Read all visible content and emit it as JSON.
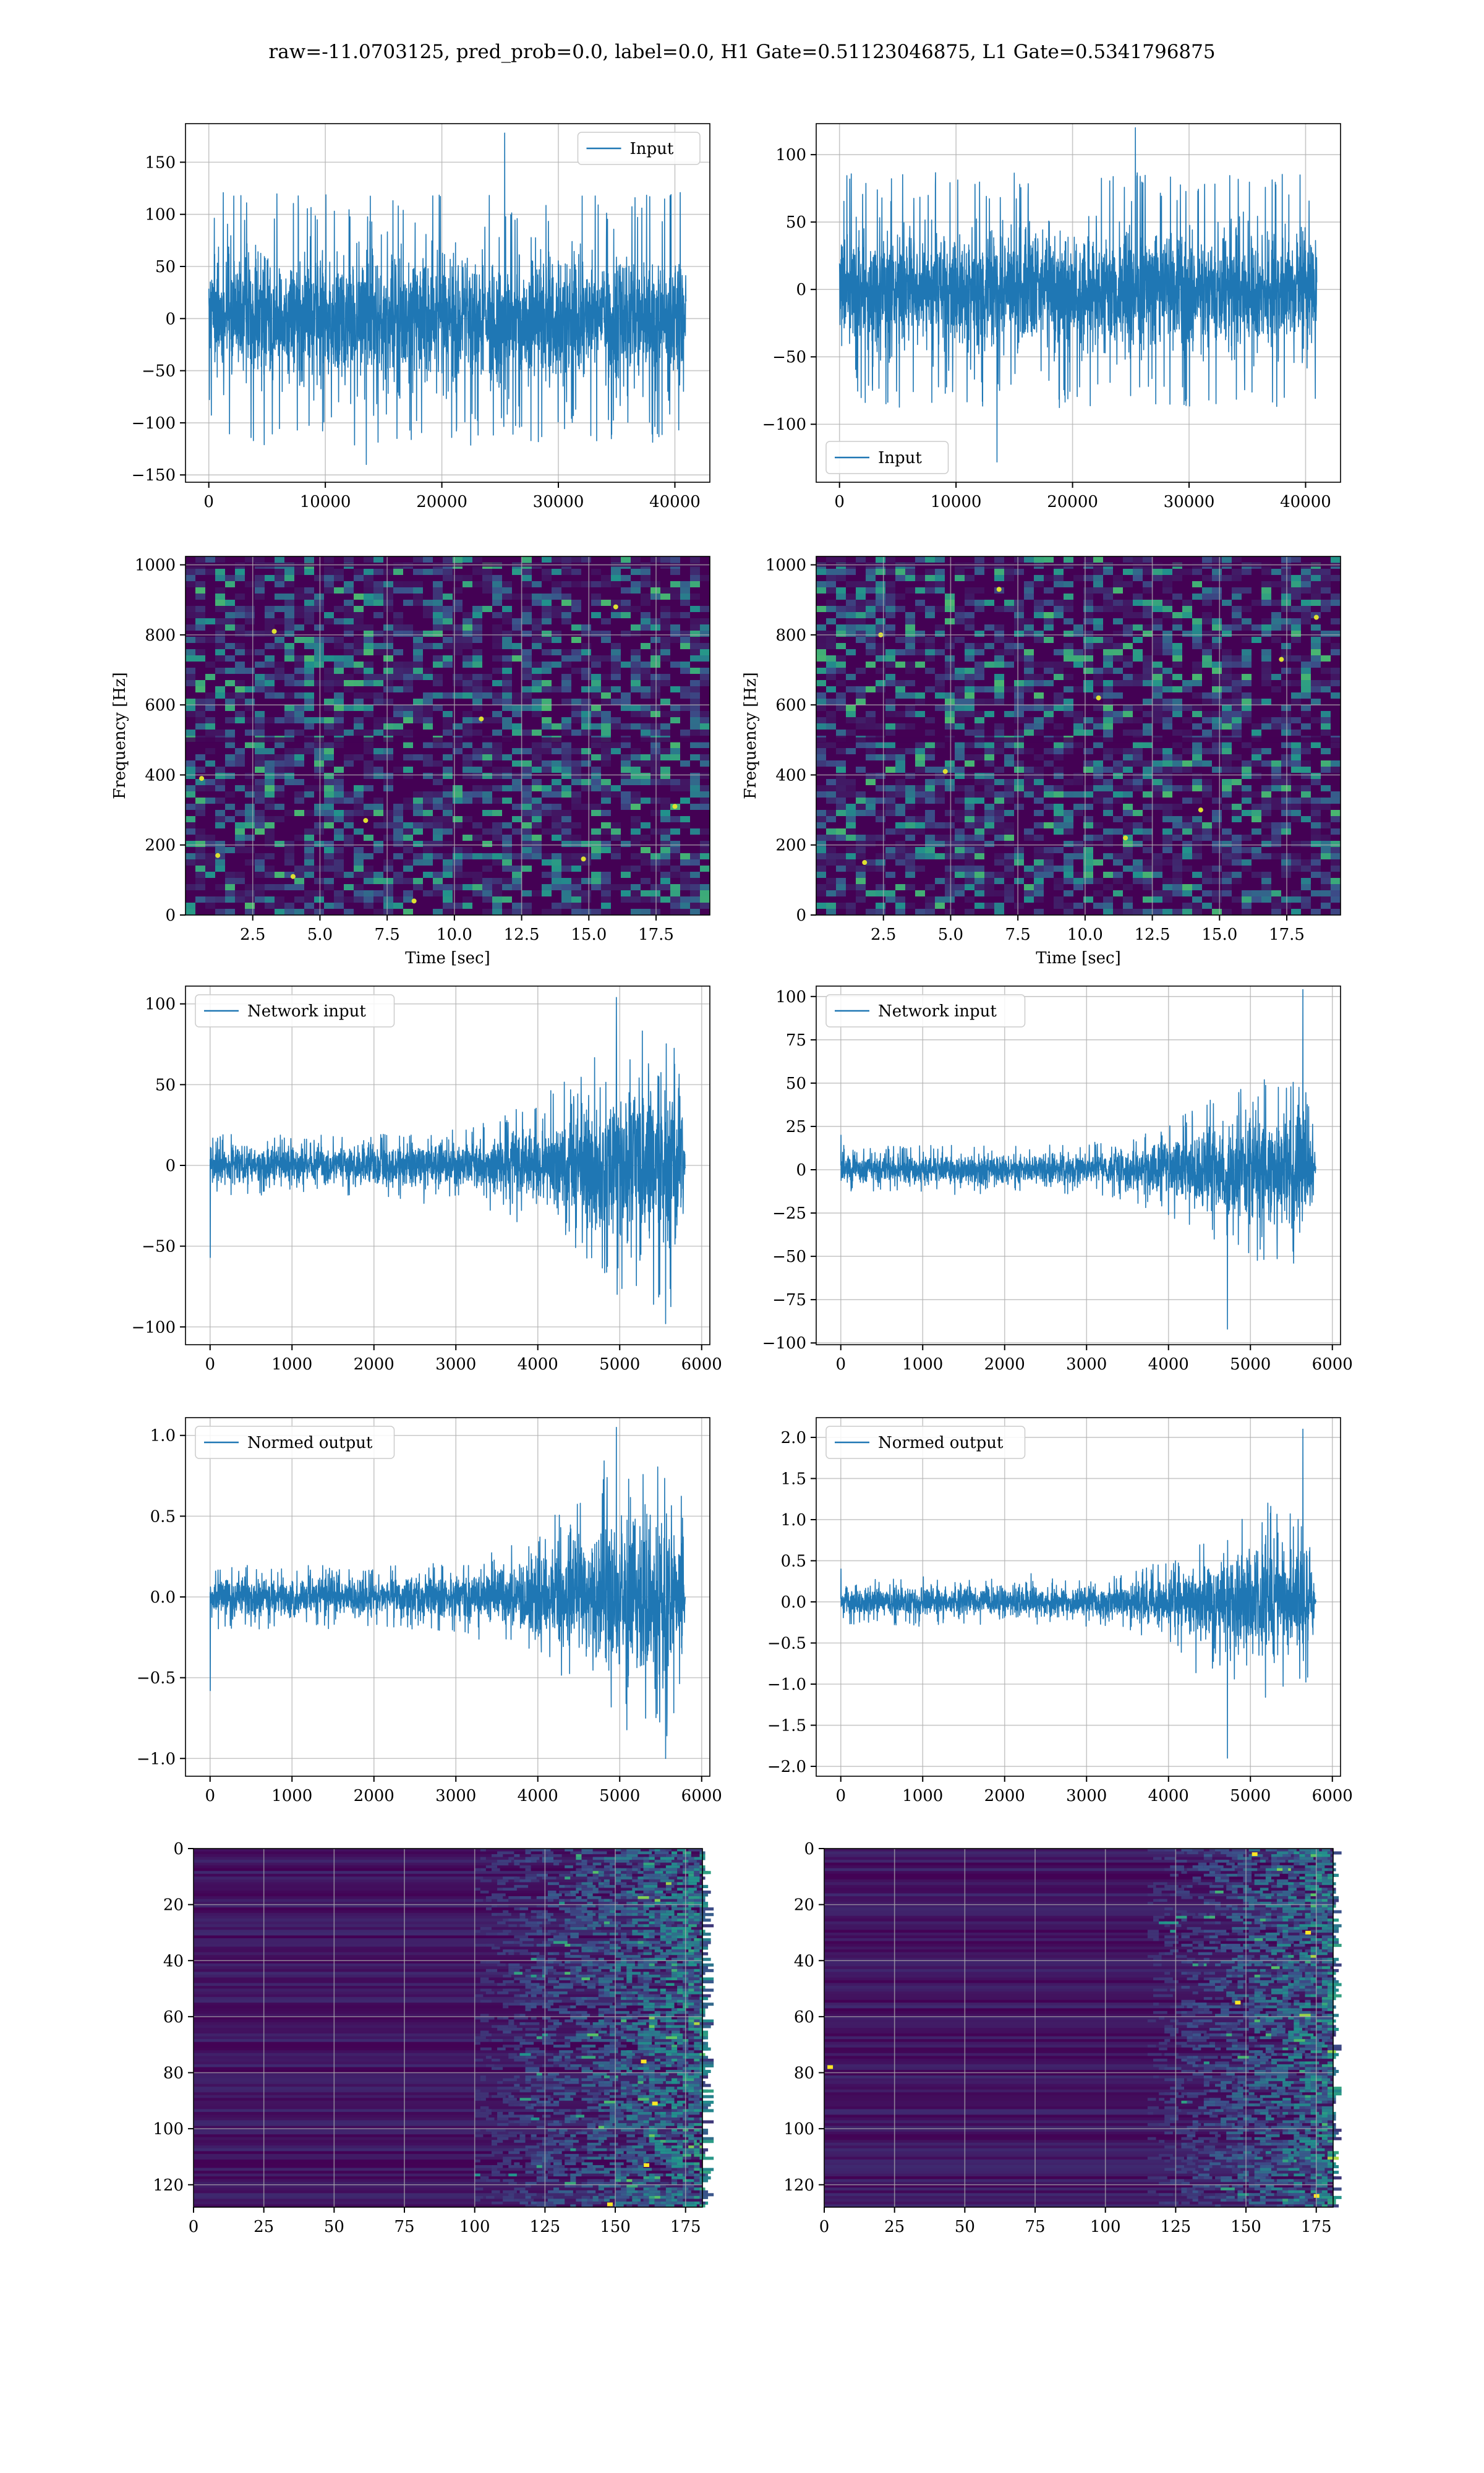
{
  "figure": {
    "title": "raw=-11.0703125, pred_prob=0.0, label=0.0, H1 Gate=0.51123046875, L1 Gate=0.5341796875",
    "colors": {
      "line": "#1f77b4",
      "grid": "#b0b0b0",
      "viridis_low": "#440154",
      "viridis_mid": "#21918c",
      "viridis_high": "#fde725"
    }
  },
  "chart_data": [
    {
      "id": "input-h1",
      "type": "line",
      "title": "",
      "xlabel": "",
      "ylabel": "",
      "series": [
        {
          "name": "Input"
        }
      ],
      "legend": "upper right",
      "xlim": [
        -2000,
        43000
      ],
      "ylim": [
        -157,
        187
      ],
      "xticks": [
        0,
        10000,
        20000,
        30000,
        40000
      ],
      "yticks": [
        -150,
        -100,
        -50,
        0,
        50,
        100,
        150
      ],
      "grid": true,
      "signal": {
        "x_start": 0,
        "x_end": 40960,
        "typical_range": [
          -90,
          90
        ],
        "peak_max": 178,
        "peak_min": -140
      },
      "x": [],
      "y": []
    },
    {
      "id": "input-l1",
      "type": "line",
      "title": "",
      "xlabel": "",
      "ylabel": "",
      "series": [
        {
          "name": "Input"
        }
      ],
      "legend": "lower left",
      "xlim": [
        -2000,
        43000
      ],
      "ylim": [
        -143,
        123
      ],
      "xticks": [
        0,
        10000,
        20000,
        30000,
        40000
      ],
      "yticks": [
        -100,
        -50,
        0,
        50,
        100
      ],
      "grid": true,
      "signal": {
        "x_start": 0,
        "x_end": 40960,
        "typical_range": [
          -65,
          65
        ],
        "peak_max": 120,
        "peak_min": -128
      },
      "x": [],
      "y": []
    },
    {
      "id": "spectrogram-h1",
      "type": "heatmap",
      "title": "",
      "xlabel": "Time [sec]",
      "ylabel": "Frequency [Hz]",
      "xlim": [
        0,
        19.5
      ],
      "ylim": [
        0,
        1024
      ],
      "xticks": [
        2.5,
        5.0,
        7.5,
        10.0,
        12.5,
        15.0,
        17.5
      ],
      "yticks": [
        0,
        200,
        400,
        600,
        800,
        1000
      ],
      "grid": true,
      "colormap": "viridis",
      "bright_spots": [
        [
          0.6,
          390
        ],
        [
          6.7,
          270
        ],
        [
          18.2,
          310
        ],
        [
          14.8,
          160
        ],
        [
          4.0,
          110
        ],
        [
          3.3,
          810
        ],
        [
          1.2,
          170
        ],
        [
          16.0,
          880
        ],
        [
          11.0,
          560
        ],
        [
          8.5,
          40
        ]
      ]
    },
    {
      "id": "spectrogram-l1",
      "type": "heatmap",
      "title": "",
      "xlabel": "Time [sec]",
      "ylabel": "Frequency [Hz]",
      "xlim": [
        0,
        19.5
      ],
      "ylim": [
        0,
        1024
      ],
      "xticks": [
        2.5,
        5.0,
        7.5,
        10.0,
        12.5,
        15.0,
        17.5
      ],
      "yticks": [
        0,
        200,
        400,
        600,
        800,
        1000
      ],
      "grid": true,
      "colormap": "viridis",
      "bright_spots": [
        [
          17.3,
          730
        ],
        [
          18.6,
          850
        ],
        [
          11.5,
          220
        ],
        [
          2.4,
          800
        ],
        [
          4.8,
          410
        ],
        [
          10.5,
          620
        ],
        [
          6.8,
          930
        ],
        [
          1.8,
          150
        ],
        [
          14.3,
          300
        ]
      ]
    },
    {
      "id": "network-input-h1",
      "type": "line",
      "title": "",
      "xlabel": "",
      "ylabel": "",
      "series": [
        {
          "name": "Network input"
        }
      ],
      "legend": "upper left",
      "xlim": [
        -300,
        6100
      ],
      "ylim": [
        -111,
        111
      ],
      "xticks": [
        0,
        1000,
        2000,
        3000,
        4000,
        5000,
        6000
      ],
      "yticks": [
        -100,
        -50,
        0,
        50,
        100
      ],
      "grid": true,
      "envelope": {
        "x": [
          0,
          1000,
          2000,
          3000,
          3500,
          4000,
          4500,
          4800,
          5200,
          5600,
          5760,
          5800
        ],
        "amp": [
          18,
          18,
          18,
          20,
          27,
          37,
          55,
          72,
          84,
          78,
          60,
          3
        ]
      },
      "extremes": {
        "max_x": 4960,
        "max_y": 104,
        "min_x": 5560,
        "min_y": -98,
        "start_spike_y": -57
      },
      "x": [],
      "y": []
    },
    {
      "id": "network-input-l1",
      "type": "line",
      "title": "",
      "xlabel": "",
      "ylabel": "",
      "series": [
        {
          "name": "Network input"
        }
      ],
      "legend": "upper left",
      "xlim": [
        -300,
        6100
      ],
      "ylim": [
        -101,
        106
      ],
      "xticks": [
        0,
        1000,
        2000,
        3000,
        4000,
        5000,
        6000
      ],
      "yticks": [
        -100,
        -75,
        -50,
        -25,
        0,
        25,
        50,
        75,
        100
      ],
      "grid": true,
      "envelope": {
        "x": [
          0,
          1000,
          2000,
          3000,
          3500,
          4000,
          4500,
          4800,
          5200,
          5600,
          5730,
          5800
        ],
        "amp": [
          13,
          13,
          13,
          14,
          17,
          24,
          38,
          48,
          55,
          52,
          40,
          3
        ]
      },
      "extremes": {
        "max_x": 5640,
        "max_y": 104,
        "min_x": 4720,
        "min_y": -92,
        "start_spike_y": 20
      },
      "x": [],
      "y": []
    },
    {
      "id": "normed-output-h1",
      "type": "line",
      "title": "",
      "xlabel": "",
      "ylabel": "",
      "series": [
        {
          "name": "Normed output"
        }
      ],
      "legend": "upper left",
      "xlim": [
        -300,
        6100
      ],
      "ylim": [
        -1.11,
        1.11
      ],
      "xticks": [
        0,
        1000,
        2000,
        3000,
        4000,
        5000,
        6000
      ],
      "yticks": [
        -1.0,
        -0.5,
        0.0,
        0.5,
        1.0
      ],
      "grid": true,
      "envelope": {
        "x": [
          0,
          1000,
          2000,
          3000,
          3500,
          4000,
          4500,
          4800,
          5200,
          5600,
          5760,
          5800
        ],
        "amp": [
          0.18,
          0.18,
          0.18,
          0.2,
          0.27,
          0.37,
          0.55,
          0.72,
          0.84,
          0.78,
          0.6,
          0.03
        ]
      },
      "extremes": {
        "max_x": 4960,
        "max_y": 1.05,
        "min_x": 5560,
        "min_y": -1.0,
        "start_spike_y": -0.58
      },
      "x": [],
      "y": []
    },
    {
      "id": "normed-output-l1",
      "type": "line",
      "title": "",
      "xlabel": "",
      "ylabel": "",
      "series": [
        {
          "name": "Normed output"
        }
      ],
      "legend": "upper left",
      "xlim": [
        -300,
        6100
      ],
      "ylim": [
        -2.12,
        2.24
      ],
      "xticks": [
        0,
        1000,
        2000,
        3000,
        4000,
        5000,
        6000
      ],
      "yticks": [
        -2.0,
        -1.5,
        -1.0,
        -0.5,
        0.0,
        0.5,
        1.0,
        1.5,
        2.0
      ],
      "grid": true,
      "envelope": {
        "x": [
          0,
          1000,
          2000,
          3000,
          3500,
          4000,
          4500,
          4800,
          5200,
          5600,
          5730,
          5800
        ],
        "amp": [
          0.26,
          0.26,
          0.26,
          0.28,
          0.34,
          0.48,
          0.76,
          0.96,
          1.1,
          1.04,
          0.8,
          0.05
        ]
      },
      "extremes": {
        "max_x": 5640,
        "max_y": 2.1,
        "min_x": 4720,
        "min_y": -1.9,
        "start_spike_y": 0.4
      },
      "x": [],
      "y": []
    },
    {
      "id": "feature-map-h1",
      "type": "heatmap",
      "title": "",
      "xlabel": "",
      "ylabel": "",
      "xlim": [
        0,
        181
      ],
      "ylim": [
        128,
        0
      ],
      "xticks": [
        0,
        25,
        50,
        75,
        100,
        125,
        150,
        175
      ],
      "yticks": [
        0,
        20,
        40,
        60,
        80,
        100,
        120
      ],
      "grid": true,
      "colormap": "viridis",
      "yaxis_inverted": true,
      "activity_onset_col": 100,
      "strong_activity_cols": [
        125,
        181
      ],
      "bright_spots": [
        [
          161,
          113
        ],
        [
          160,
          76
        ],
        [
          148,
          127
        ],
        [
          164,
          91
        ]
      ]
    },
    {
      "id": "feature-map-l1",
      "type": "heatmap",
      "title": "",
      "xlabel": "",
      "ylabel": "",
      "xlim": [
        0,
        181
      ],
      "ylim": [
        128,
        0
      ],
      "xticks": [
        0,
        25,
        50,
        75,
        100,
        125,
        150,
        175
      ],
      "yticks": [
        0,
        20,
        40,
        60,
        80,
        100,
        120
      ],
      "grid": true,
      "colormap": "viridis",
      "yaxis_inverted": true,
      "activity_onset_col": 115,
      "strong_activity_cols": [
        125,
        181
      ],
      "bright_spots": [
        [
          147,
          55
        ],
        [
          153,
          2
        ],
        [
          2,
          78
        ],
        [
          175,
          124
        ],
        [
          172,
          30
        ]
      ]
    }
  ]
}
